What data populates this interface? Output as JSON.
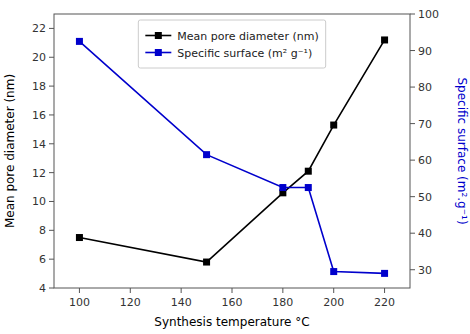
{
  "chart_data": {
    "type": "line",
    "xlabel": "Synthesis temperature °C",
    "ylabel": "Mean pore diameter (nm)",
    "y2label": "Specific surface (m².g⁻¹)",
    "x": [
      100,
      150,
      180,
      190,
      200,
      220
    ],
    "series": [
      {
        "name": "Mean pore diameter (nm)",
        "color": "#000000",
        "marker": "square",
        "line_style": "solid",
        "values": [
          7.5,
          5.8,
          10.6,
          12.1,
          15.3,
          21.2
        ]
      },
      {
        "name": "Specific surface (m² g⁻¹)",
        "color": "#0000cc",
        "marker": "square",
        "line_style": "solid",
        "axis": "y2",
        "values": [
          92.5,
          61.5,
          52.5,
          52.5,
          29.5,
          29.0
        ]
      }
    ],
    "xlim": [
      90,
      230
    ],
    "xticks": [
      100,
      120,
      140,
      160,
      180,
      200,
      220
    ],
    "ylim": [
      4,
      23
    ],
    "yticks": [
      4,
      6,
      8,
      10,
      12,
      14,
      16,
      18,
      20,
      22
    ],
    "y2lim": [
      25,
      100
    ],
    "y2ticks": [
      30,
      40,
      50,
      60,
      70,
      80,
      90,
      100
    ],
    "grid": false,
    "legend": "upper center"
  }
}
